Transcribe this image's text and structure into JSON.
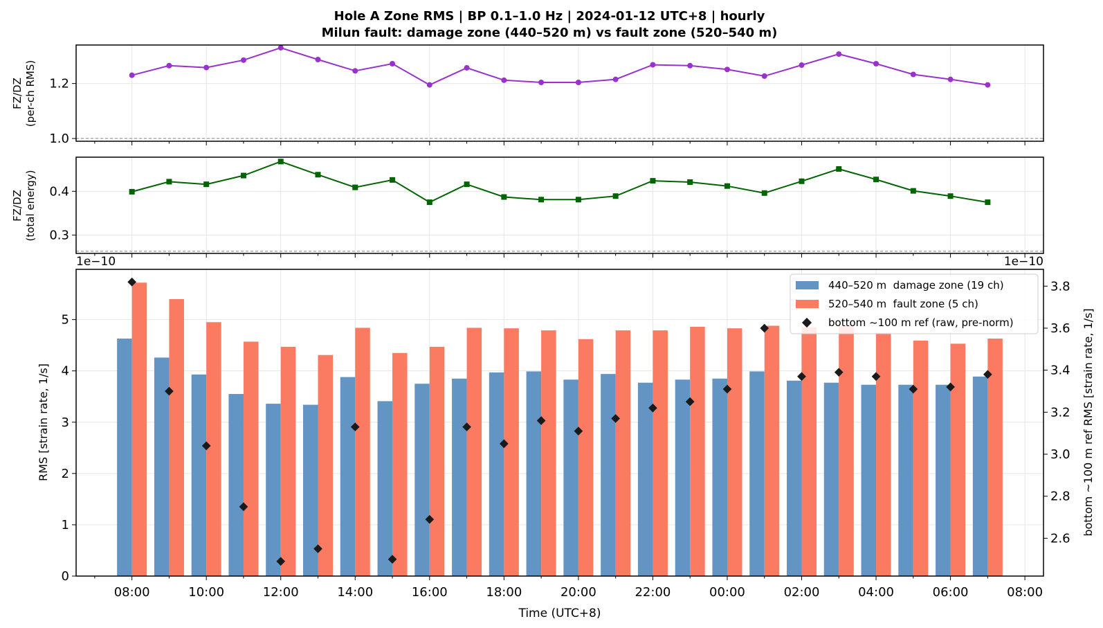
{
  "title_line1": "Hole A Zone RMS  |  BP 0.1–1.0 Hz  |  2024-01-12 UTC+8  |  hourly",
  "title_line2": "Milun fault: damage zone (440–520 m) vs fault zone (520–540 m)",
  "chart_data": [
    {
      "type": "line",
      "panel": "top",
      "ylabel_line1": "FZ/DZ",
      "ylabel_line2": "(per-ch RMS)",
      "ylim": [
        0.99,
        1.34
      ],
      "yticks": [
        1.0,
        1.2
      ],
      "ytick_labels": [
        "1.0",
        "1.2"
      ],
      "reference_line": 1.0,
      "grid": true,
      "color": "#9932CC",
      "marker": "circle",
      "x": [
        "08:00",
        "09:00",
        "10:00",
        "11:00",
        "12:00",
        "13:00",
        "14:00",
        "15:00",
        "16:00",
        "17:00",
        "18:00",
        "19:00",
        "20:00",
        "21:00",
        "22:00",
        "23:00",
        "00:00",
        "01:00",
        "02:00",
        "03:00",
        "04:00",
        "05:00",
        "06:00",
        "07:00"
      ],
      "values": [
        1.23,
        1.265,
        1.258,
        1.285,
        1.33,
        1.287,
        1.246,
        1.272,
        1.195,
        1.257,
        1.212,
        1.204,
        1.204,
        1.215,
        1.268,
        1.265,
        1.251,
        1.227,
        1.267,
        1.307,
        1.272,
        1.233,
        1.215,
        1.195
      ]
    },
    {
      "type": "line",
      "panel": "middle",
      "ylabel_line1": "FZ/DZ",
      "ylabel_line2": "(total energy)",
      "ylim": [
        0.258,
        0.478
      ],
      "yticks": [
        0.3,
        0.4
      ],
      "ytick_labels": [
        "0.3",
        "0.4"
      ],
      "reference_line": 0.263,
      "grid": true,
      "color": "#006400",
      "marker": "square",
      "x": [
        "08:00",
        "09:00",
        "10:00",
        "11:00",
        "12:00",
        "13:00",
        "14:00",
        "15:00",
        "16:00",
        "17:00",
        "18:00",
        "19:00",
        "20:00",
        "21:00",
        "22:00",
        "23:00",
        "00:00",
        "01:00",
        "02:00",
        "03:00",
        "04:00",
        "05:00",
        "06:00",
        "07:00"
      ],
      "values": [
        0.399,
        0.422,
        0.416,
        0.436,
        0.468,
        0.438,
        0.409,
        0.426,
        0.375,
        0.416,
        0.387,
        0.381,
        0.381,
        0.389,
        0.424,
        0.421,
        0.412,
        0.396,
        0.423,
        0.451,
        0.427,
        0.401,
        0.389,
        0.375
      ]
    },
    {
      "type": "bar",
      "panel": "bottom",
      "xlabel": "Time (UTC+8)",
      "ylabel": "RMS  [strain rate, 1/s]",
      "y2label": "bottom ~100 m ref RMS  [strain rate, 1/s]",
      "offset_text_left": "1e−10",
      "offset_text_right": "1e−10",
      "ylim": [
        0,
        5.98
      ],
      "yticks": [
        0,
        1,
        2,
        3,
        4,
        5
      ],
      "ytick_labels": [
        "0",
        "1",
        "2",
        "3",
        "4",
        "5"
      ],
      "y2lim": [
        2.42,
        3.88
      ],
      "y2ticks": [
        2.6,
        2.8,
        3.0,
        3.2,
        3.4,
        3.6,
        3.8
      ],
      "y2tick_labels": [
        "2.6",
        "2.8",
        "3.0",
        "3.2",
        "3.4",
        "3.6",
        "3.8"
      ],
      "xticks": [
        "08:00",
        "10:00",
        "12:00",
        "14:00",
        "16:00",
        "18:00",
        "20:00",
        "22:00",
        "00:00",
        "02:00",
        "04:00",
        "06:00",
        "08:00"
      ],
      "grid": true,
      "legend_position": "top-right",
      "categories": [
        "08:00",
        "09:00",
        "10:00",
        "11:00",
        "12:00",
        "13:00",
        "14:00",
        "15:00",
        "16:00",
        "17:00",
        "18:00",
        "19:00",
        "20:00",
        "21:00",
        "22:00",
        "23:00",
        "00:00",
        "01:00",
        "02:00",
        "03:00",
        "04:00",
        "05:00",
        "06:00",
        "07:00"
      ],
      "series": [
        {
          "name": "440–520 m  damage zone (19 ch)",
          "color": "#6395C4",
          "axis": "left",
          "kind": "bar",
          "values": [
            4.63,
            4.26,
            3.93,
            3.55,
            3.36,
            3.34,
            3.88,
            3.41,
            3.75,
            3.85,
            3.97,
            3.99,
            3.83,
            3.94,
            3.77,
            3.83,
            3.85,
            3.99,
            3.81,
            3.77,
            3.73,
            3.73,
            3.73,
            3.89
          ]
        },
        {
          "name": "520–540 m  fault zone (5 ch)",
          "color": "#FA7A62",
          "axis": "left",
          "kind": "bar",
          "values": [
            5.72,
            5.4,
            4.95,
            4.57,
            4.47,
            4.31,
            4.84,
            4.35,
            4.47,
            4.84,
            4.83,
            4.79,
            4.62,
            4.79,
            4.79,
            4.86,
            4.83,
            4.88,
            4.85,
            4.88,
            4.74,
            4.59,
            4.53,
            4.63
          ]
        },
        {
          "name": "bottom ~100 m ref (raw, pre-norm)",
          "color": "#1a1a1a",
          "axis": "right",
          "kind": "scatter",
          "values": [
            3.82,
            3.3,
            3.04,
            2.75,
            2.49,
            2.55,
            3.13,
            2.5,
            2.69,
            3.13,
            3.05,
            3.16,
            3.11,
            3.17,
            3.22,
            3.25,
            3.31,
            3.6,
            3.37,
            3.39,
            3.37,
            3.31,
            3.32,
            3.38
          ]
        }
      ]
    }
  ]
}
